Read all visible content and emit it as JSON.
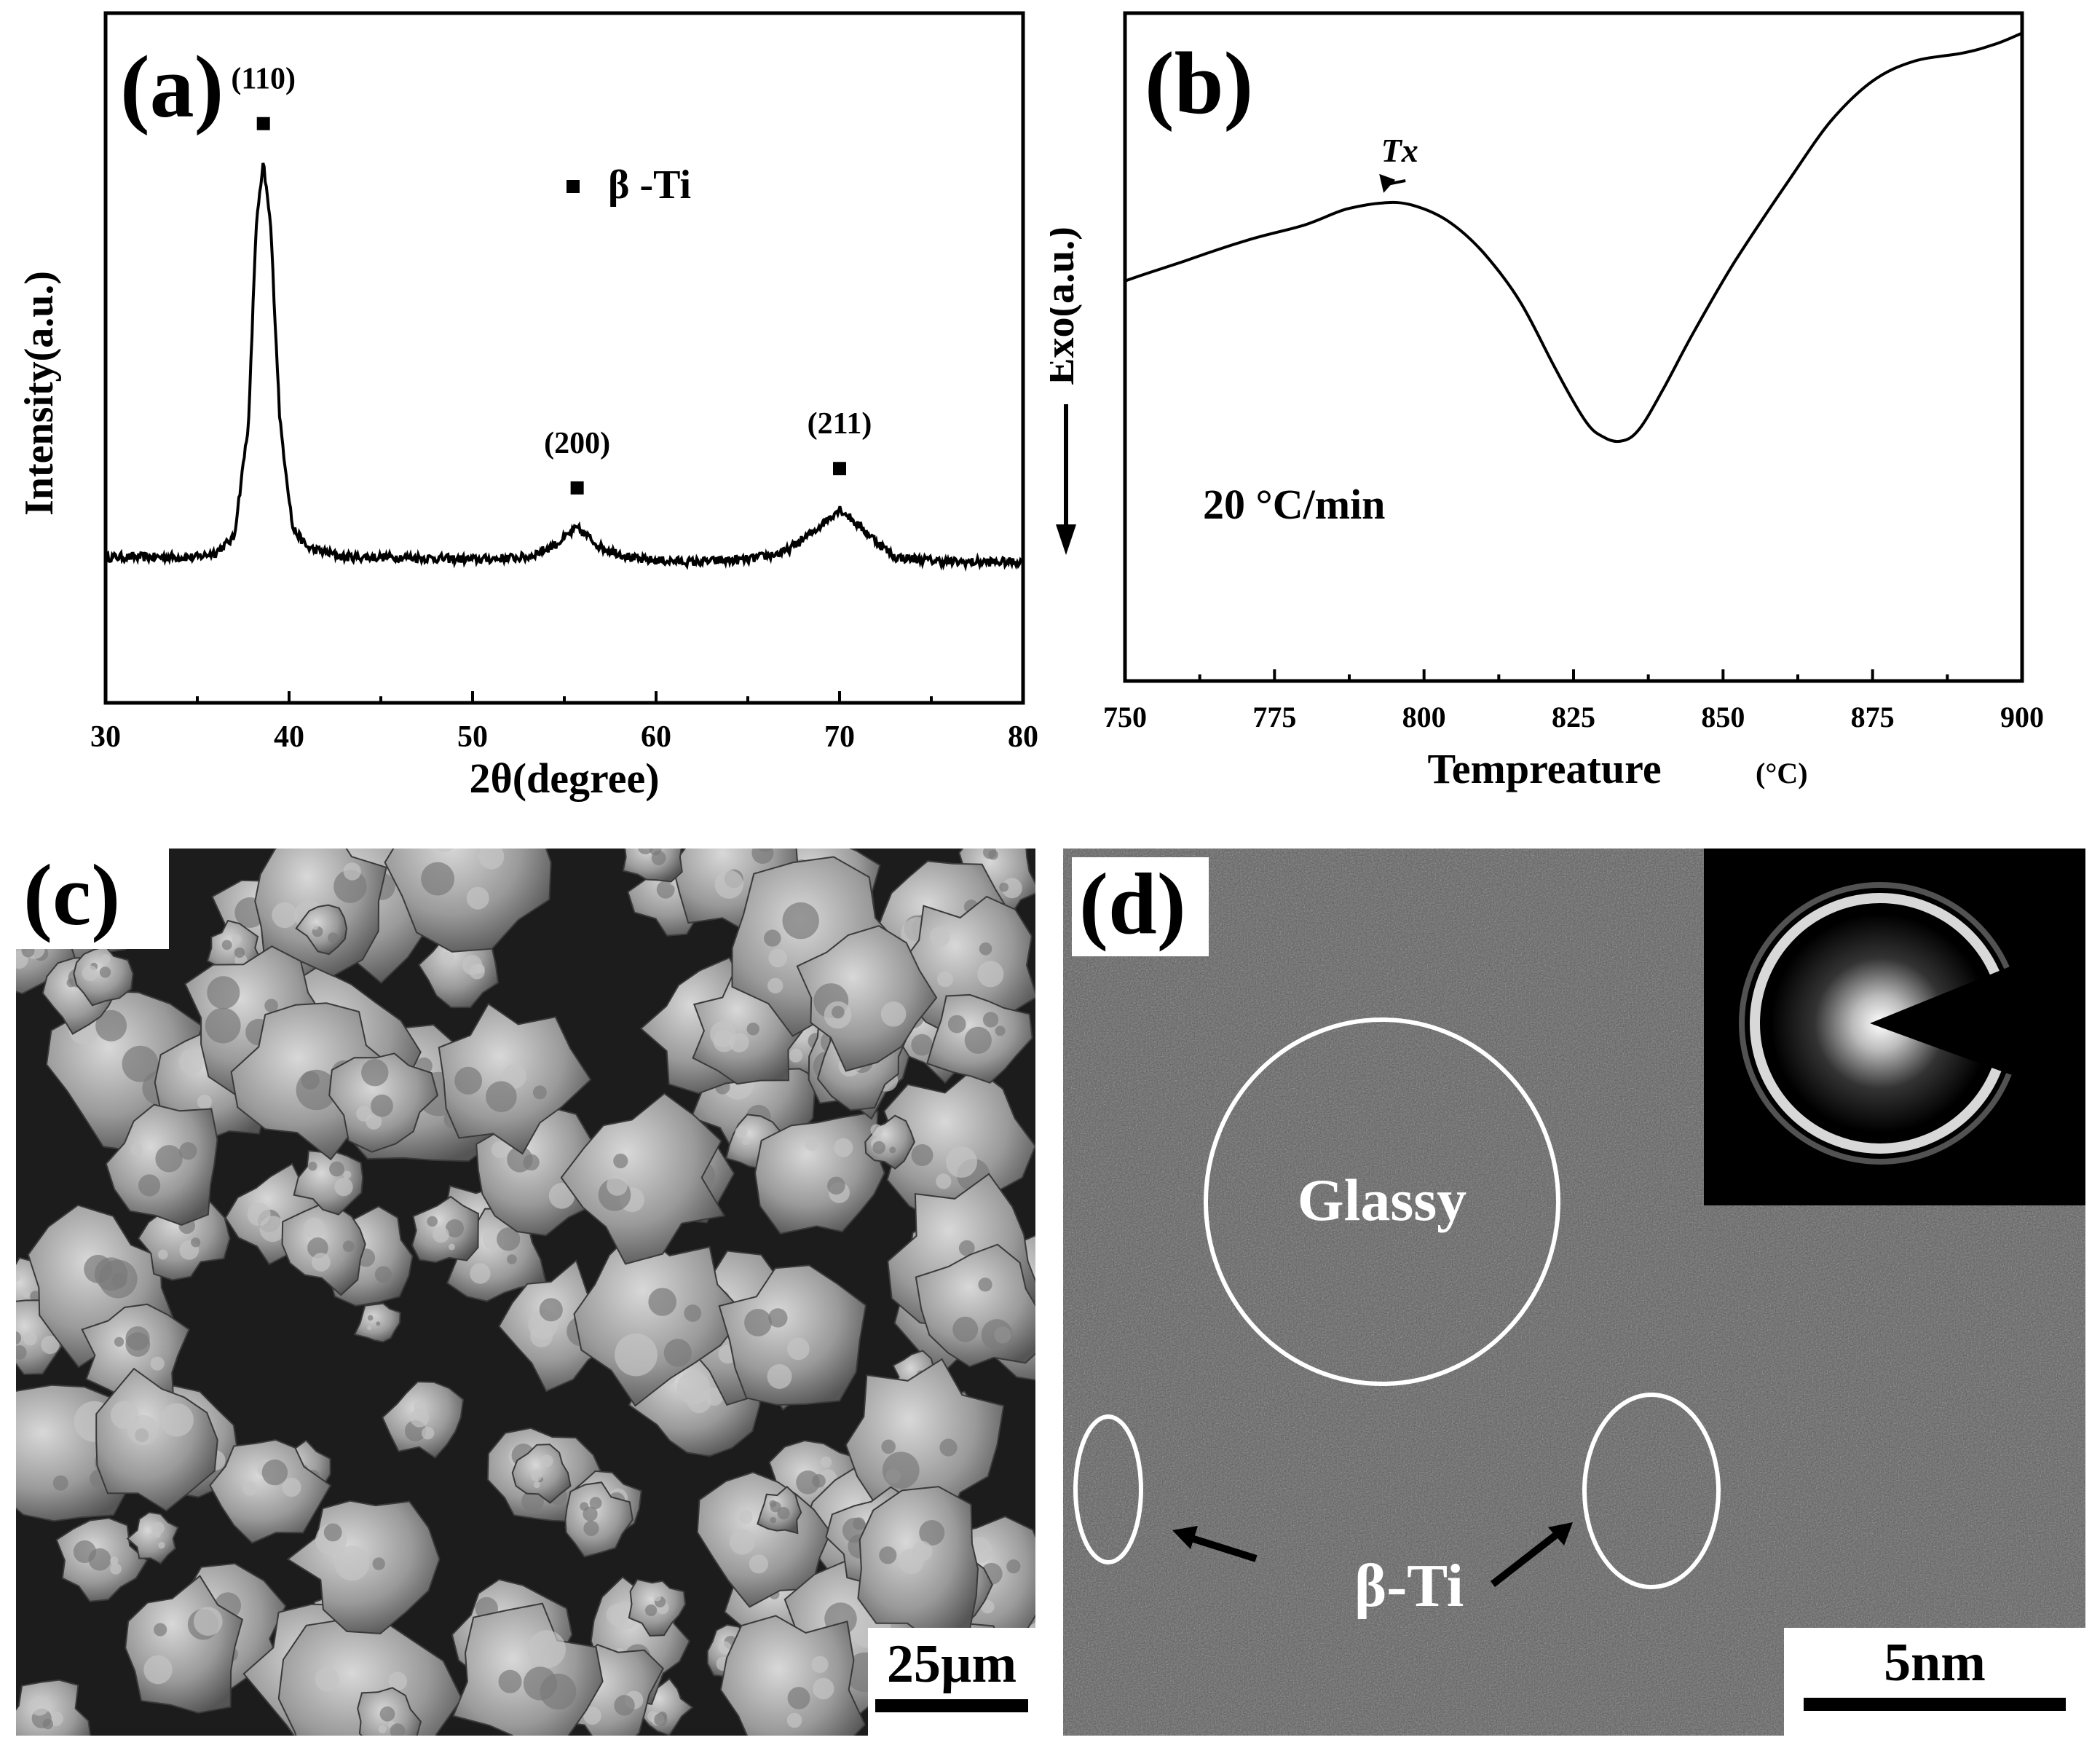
{
  "chart_data": [
    {
      "type": "line",
      "panel_label": "(a)",
      "xlabel": "2θ(degree)",
      "ylabel": "Intensity(a.u.)",
      "xlim": [
        30,
        80
      ],
      "x_ticks": [
        "30",
        "40",
        "50",
        "60",
        "70",
        "80"
      ],
      "legend": {
        "marker": "square",
        "text": "β -Ti"
      },
      "peaks": [
        {
          "label": "(110)",
          "x": 38.6,
          "y": 0.83
        },
        {
          "label": "(200)",
          "x": 55.7,
          "y": 0.08
        },
        {
          "label": "(211)",
          "x": 70.0,
          "y": 0.12
        }
      ],
      "series": [
        {
          "x": [
            30,
            33,
            35,
            36,
            37,
            37.8,
            38.2,
            38.6,
            39.0,
            39.5,
            40.2,
            41,
            43,
            46,
            50,
            53,
            54.5,
            55.7,
            57,
            59,
            62,
            65,
            67,
            68.5,
            70.0,
            71.5,
            73,
            76,
            80
          ],
          "y": [
            0.02,
            0.02,
            0.02,
            0.03,
            0.06,
            0.3,
            0.7,
            0.83,
            0.7,
            0.3,
            0.08,
            0.04,
            0.02,
            0.02,
            0.015,
            0.02,
            0.045,
            0.08,
            0.04,
            0.015,
            0.01,
            0.015,
            0.03,
            0.07,
            0.12,
            0.07,
            0.02,
            0.01,
            0.01
          ]
        }
      ]
    },
    {
      "type": "line",
      "panel_label": "(b)",
      "xlabel": "Tempreature",
      "xlabel_unit": "(°C)",
      "ylabel": "Exo(a.u.)",
      "xlim": [
        750,
        900
      ],
      "x_ticks": [
        "750",
        "775",
        "800",
        "825",
        "850",
        "875",
        "900"
      ],
      "annotation_peak": {
        "text": "Tx",
        "x": 793
      },
      "annotation_rate": "20 °C/min",
      "series": [
        {
          "x": [
            750,
            760,
            770,
            780,
            787,
            793,
            798,
            804,
            810,
            816,
            822,
            827,
            830,
            833,
            836,
            840,
            845,
            852,
            860,
            868,
            875,
            882,
            890,
            895,
            900
          ],
          "y": [
            0.55,
            0.6,
            0.65,
            0.69,
            0.73,
            0.745,
            0.74,
            0.7,
            0.62,
            0.5,
            0.33,
            0.2,
            0.16,
            0.15,
            0.18,
            0.28,
            0.42,
            0.6,
            0.78,
            0.95,
            1.05,
            1.1,
            1.12,
            1.14,
            1.17
          ]
        }
      ]
    }
  ],
  "panel_c": {
    "label": "(c)",
    "scale_text": "25µm"
  },
  "panel_d": {
    "label": "(d)",
    "glassy_text": "Glassy",
    "beta_text": "β-Ti",
    "scale_text": "5nm"
  }
}
